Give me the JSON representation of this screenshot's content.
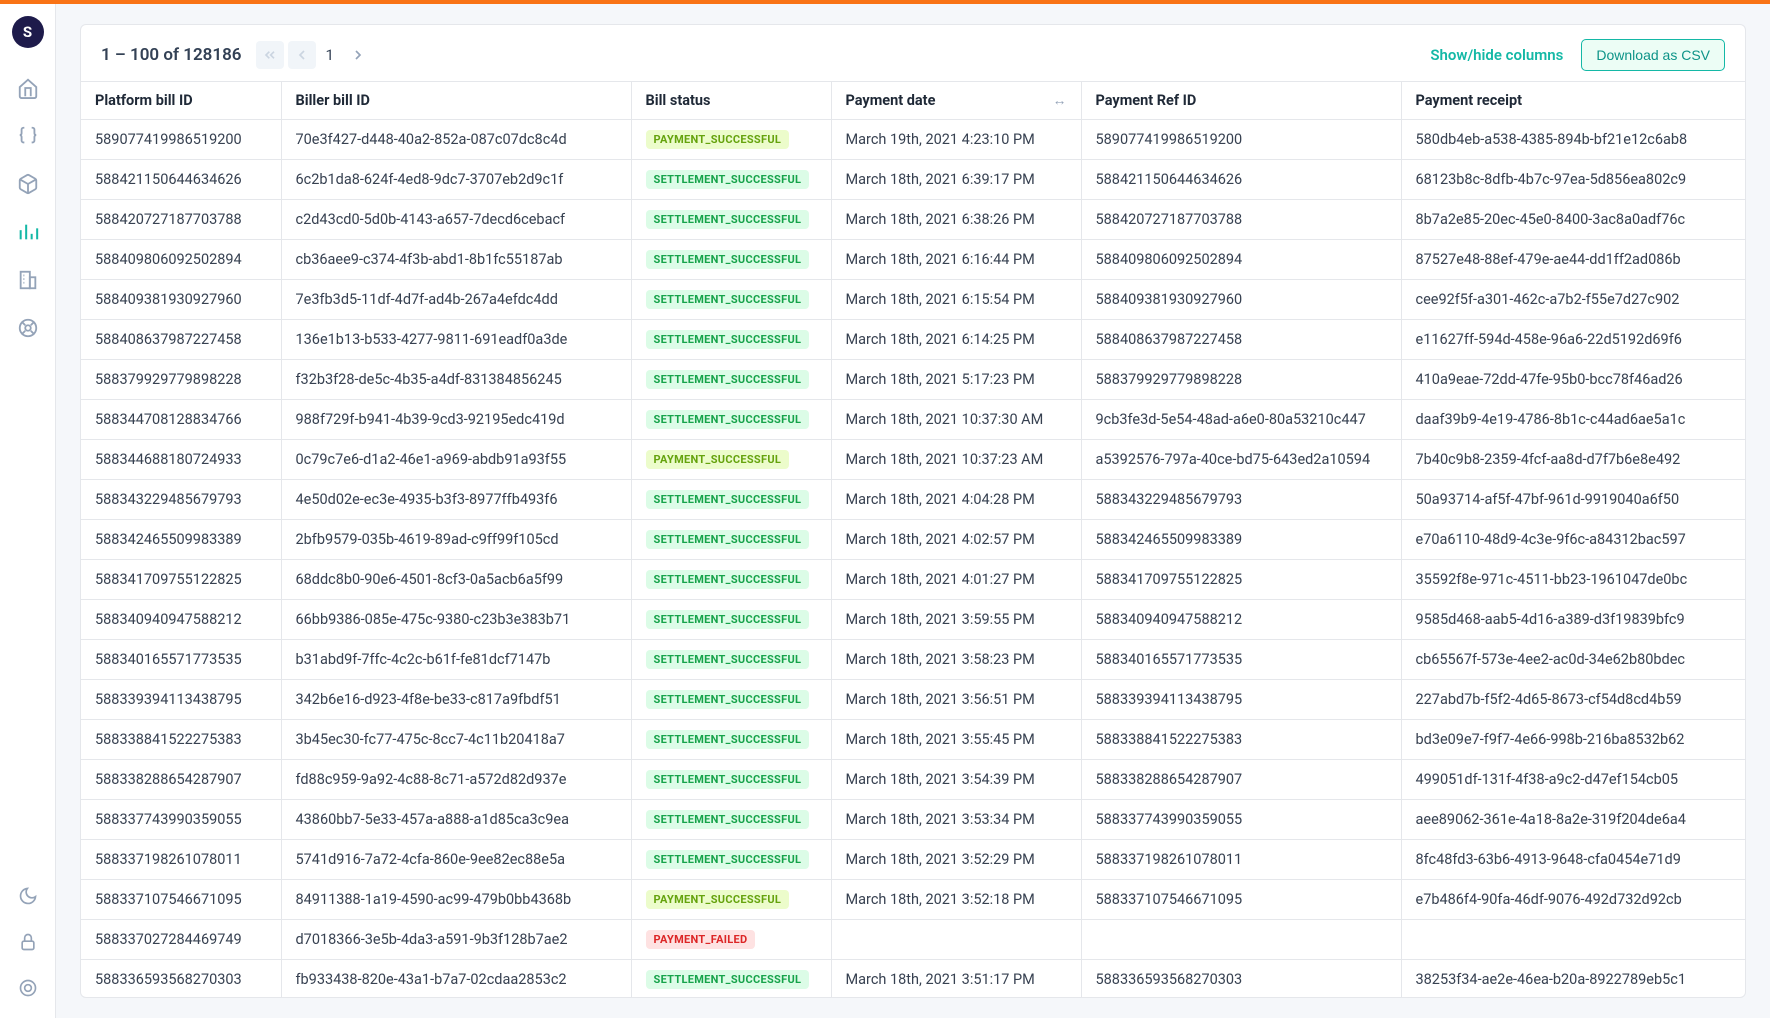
{
  "accent_color": "#14b8a6",
  "top_bar_color": "#f97316",
  "logo_text": "S",
  "header": {
    "range_text": "1 – 100 of 128186",
    "page_number": "1",
    "show_hide_label": "Show/hide columns",
    "download_label": "Download as CSV"
  },
  "columns": [
    {
      "key": "platform_bill_id",
      "label": "Platform bill ID"
    },
    {
      "key": "biller_bill_id",
      "label": "Biller bill ID"
    },
    {
      "key": "bill_status",
      "label": "Bill status"
    },
    {
      "key": "payment_date",
      "label": "Payment date",
      "sortable": true
    },
    {
      "key": "payment_ref_id",
      "label": "Payment Ref ID"
    },
    {
      "key": "payment_receipt",
      "label": "Payment receipt"
    }
  ],
  "status_styles": {
    "PAYMENT_SUCCESSFUL": "payment-success",
    "SETTLEMENT_SUCCESSFUL": "settlement-success",
    "PAYMENT_FAILED": "payment-failed"
  },
  "rows": [
    {
      "platform_bill_id": "589077419986519200",
      "biller_bill_id": "70e3f427-d448-40a2-852a-087c07dc8c4d",
      "bill_status": "PAYMENT_SUCCESSFUL",
      "payment_date": "March 19th, 2021 4:23:10 PM",
      "payment_ref_id": "589077419986519200",
      "payment_receipt": "580db4eb-a538-4385-894b-bf21e12c6ab8"
    },
    {
      "platform_bill_id": "588421150644634626",
      "biller_bill_id": "6c2b1da8-624f-4ed8-9dc7-3707eb2d9c1f",
      "bill_status": "SETTLEMENT_SUCCESSFUL",
      "payment_date": "March 18th, 2021 6:39:17 PM",
      "payment_ref_id": "588421150644634626",
      "payment_receipt": "68123b8c-8dfb-4b7c-97ea-5d856ea802c9"
    },
    {
      "platform_bill_id": "588420727187703788",
      "biller_bill_id": "c2d43cd0-5d0b-4143-a657-7decd6cebacf",
      "bill_status": "SETTLEMENT_SUCCESSFUL",
      "payment_date": "March 18th, 2021 6:38:26 PM",
      "payment_ref_id": "588420727187703788",
      "payment_receipt": "8b7a2e85-20ec-45e0-8400-3ac8a0adf76c"
    },
    {
      "platform_bill_id": "588409806092502894",
      "biller_bill_id": "cb36aee9-c374-4f3b-abd1-8b1fc55187ab",
      "bill_status": "SETTLEMENT_SUCCESSFUL",
      "payment_date": "March 18th, 2021 6:16:44 PM",
      "payment_ref_id": "588409806092502894",
      "payment_receipt": "87527e48-88ef-479e-ae44-dd1ff2ad086b"
    },
    {
      "platform_bill_id": "588409381930927960",
      "biller_bill_id": "7e3fb3d5-11df-4d7f-ad4b-267a4efdc4dd",
      "bill_status": "SETTLEMENT_SUCCESSFUL",
      "payment_date": "March 18th, 2021 6:15:54 PM",
      "payment_ref_id": "588409381930927960",
      "payment_receipt": "cee92f5f-a301-462c-a7b2-f55e7d27c902"
    },
    {
      "platform_bill_id": "588408637987227458",
      "biller_bill_id": "136e1b13-b533-4277-9811-691eadf0a3de",
      "bill_status": "SETTLEMENT_SUCCESSFUL",
      "payment_date": "March 18th, 2021 6:14:25 PM",
      "payment_ref_id": "588408637987227458",
      "payment_receipt": "e11627ff-594d-458e-96a6-22d5192d69f6"
    },
    {
      "platform_bill_id": "588379929779898228",
      "biller_bill_id": "f32b3f28-de5c-4b35-a4df-831384856245",
      "bill_status": "SETTLEMENT_SUCCESSFUL",
      "payment_date": "March 18th, 2021 5:17:23 PM",
      "payment_ref_id": "588379929779898228",
      "payment_receipt": "410a9eae-72dd-47fe-95b0-bcc78f46ad26"
    },
    {
      "platform_bill_id": "588344708128834766",
      "biller_bill_id": "988f729f-b941-4b39-9cd3-92195edc419d",
      "bill_status": "SETTLEMENT_SUCCESSFUL",
      "payment_date": "March 18th, 2021 10:37:30 AM",
      "payment_ref_id": "9cb3fe3d-5e54-48ad-a6e0-80a53210c447",
      "payment_receipt": "daaf39b9-4e19-4786-8b1c-c44ad6ae5a1c"
    },
    {
      "platform_bill_id": "588344688180724933",
      "biller_bill_id": "0c79c7e6-d1a2-46e1-a969-abdb91a93f55",
      "bill_status": "PAYMENT_SUCCESSFUL",
      "payment_date": "March 18th, 2021 10:37:23 AM",
      "payment_ref_id": "a5392576-797a-40ce-bd75-643ed2a10594",
      "payment_receipt": "7b40c9b8-2359-4fcf-aa8d-d7f7b6e8e492"
    },
    {
      "platform_bill_id": "588343229485679793",
      "biller_bill_id": "4e50d02e-ec3e-4935-b3f3-8977ffb493f6",
      "bill_status": "SETTLEMENT_SUCCESSFUL",
      "payment_date": "March 18th, 2021 4:04:28 PM",
      "payment_ref_id": "588343229485679793",
      "payment_receipt": "50a93714-af5f-47bf-961d-9919040a6f50"
    },
    {
      "platform_bill_id": "588342465509983389",
      "biller_bill_id": "2bfb9579-035b-4619-89ad-c9ff99f105cd",
      "bill_status": "SETTLEMENT_SUCCESSFUL",
      "payment_date": "March 18th, 2021 4:02:57 PM",
      "payment_ref_id": "588342465509983389",
      "payment_receipt": "e70a6110-48d9-4c3e-9f6c-a84312bac597"
    },
    {
      "platform_bill_id": "588341709755122825",
      "biller_bill_id": "68ddc8b0-90e6-4501-8cf3-0a5acb6a5f99",
      "bill_status": "SETTLEMENT_SUCCESSFUL",
      "payment_date": "March 18th, 2021 4:01:27 PM",
      "payment_ref_id": "588341709755122825",
      "payment_receipt": "35592f8e-971c-4511-bb23-1961047de0bc"
    },
    {
      "platform_bill_id": "588340940947588212",
      "biller_bill_id": "66bb9386-085e-475c-9380-c23b3e383b71",
      "bill_status": "SETTLEMENT_SUCCESSFUL",
      "payment_date": "March 18th, 2021 3:59:55 PM",
      "payment_ref_id": "588340940947588212",
      "payment_receipt": "9585d468-aab5-4d16-a389-d3f19839bfc9"
    },
    {
      "platform_bill_id": "588340165571773535",
      "biller_bill_id": "b31abd9f-7ffc-4c2c-b61f-fe81dcf7147b",
      "bill_status": "SETTLEMENT_SUCCESSFUL",
      "payment_date": "March 18th, 2021 3:58:23 PM",
      "payment_ref_id": "588340165571773535",
      "payment_receipt": "cb65567f-573e-4ee2-ac0d-34e62b80bdec"
    },
    {
      "platform_bill_id": "588339394113438795",
      "biller_bill_id": "342b6e16-d923-4f8e-be33-c817a9fbdf51",
      "bill_status": "SETTLEMENT_SUCCESSFUL",
      "payment_date": "March 18th, 2021 3:56:51 PM",
      "payment_ref_id": "588339394113438795",
      "payment_receipt": "227abd7b-f5f2-4d65-8673-cf54d8cd4b59"
    },
    {
      "platform_bill_id": "588338841522275383",
      "biller_bill_id": "3b45ec30-fc77-475c-8cc7-4c11b20418a7",
      "bill_status": "SETTLEMENT_SUCCESSFUL",
      "payment_date": "March 18th, 2021 3:55:45 PM",
      "payment_ref_id": "588338841522275383",
      "payment_receipt": "bd3e09e7-f9f7-4e66-998b-216ba8532b62"
    },
    {
      "platform_bill_id": "588338288654287907",
      "biller_bill_id": "fd88c959-9a92-4c88-8c71-a572d82d937e",
      "bill_status": "SETTLEMENT_SUCCESSFUL",
      "payment_date": "March 18th, 2021 3:54:39 PM",
      "payment_ref_id": "588338288654287907",
      "payment_receipt": "499051df-131f-4f38-a9c2-d47ef154cb05"
    },
    {
      "platform_bill_id": "588337743990359055",
      "biller_bill_id": "43860bb7-5e33-457a-a888-a1d85ca3c9ea",
      "bill_status": "SETTLEMENT_SUCCESSFUL",
      "payment_date": "March 18th, 2021 3:53:34 PM",
      "payment_ref_id": "588337743990359055",
      "payment_receipt": "aee89062-361e-4a18-8a2e-319f204de6a4"
    },
    {
      "platform_bill_id": "588337198261078011",
      "biller_bill_id": "5741d916-7a72-4cfa-860e-9ee82ec88e5a",
      "bill_status": "SETTLEMENT_SUCCESSFUL",
      "payment_date": "March 18th, 2021 3:52:29 PM",
      "payment_ref_id": "588337198261078011",
      "payment_receipt": "8fc48fd3-63b6-4913-9648-cfa0454e71d9"
    },
    {
      "platform_bill_id": "588337107546671095",
      "biller_bill_id": "84911388-1a19-4590-ac99-479b0bb4368b",
      "bill_status": "PAYMENT_SUCCESSFUL",
      "payment_date": "March 18th, 2021 3:52:18 PM",
      "payment_ref_id": "588337107546671095",
      "payment_receipt": "e7b486f4-90fa-46df-9076-492d732d92cb"
    },
    {
      "platform_bill_id": "588337027284469749",
      "biller_bill_id": "d7018366-3e5b-4da3-a591-9b3f128b7ae2",
      "bill_status": "PAYMENT_FAILED",
      "payment_date": "",
      "payment_ref_id": "",
      "payment_receipt": ""
    },
    {
      "platform_bill_id": "588336593568270303",
      "biller_bill_id": "fb933438-820e-43a1-b7a7-02cdaa2853c2",
      "bill_status": "SETTLEMENT_SUCCESSFUL",
      "payment_date": "March 18th, 2021 3:51:17 PM",
      "payment_ref_id": "588336593568270303",
      "payment_receipt": "38253f34-ae2e-46ea-b20a-8922789eb5c1"
    }
  ]
}
